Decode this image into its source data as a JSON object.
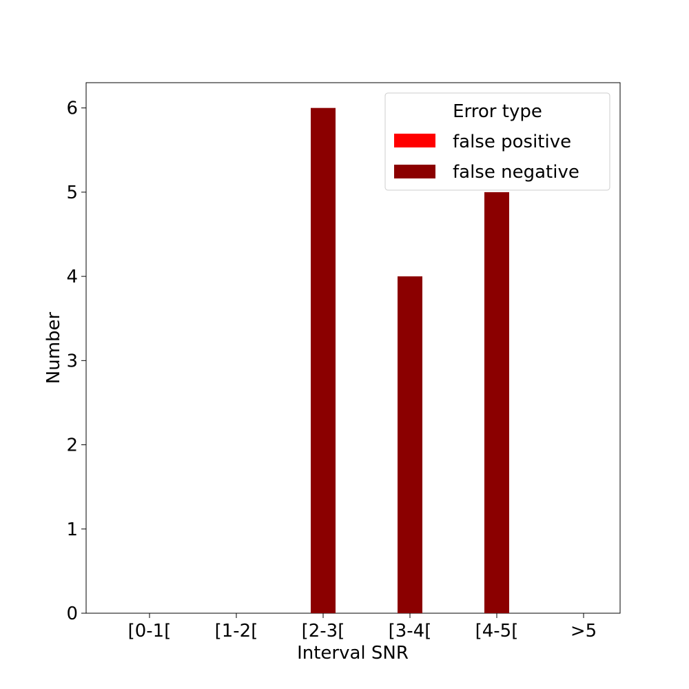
{
  "chart_data": {
    "type": "bar",
    "title": "",
    "xlabel": "Interval SNR",
    "ylabel": "Number",
    "categories": [
      "[0-1[",
      "[1-2[",
      "[2-3[",
      "[3-4[",
      "[4-5[",
      ">5"
    ],
    "series": [
      {
        "name": "false positive",
        "values": [
          0,
          0,
          0,
          0,
          0,
          0
        ],
        "color": "#ff0000"
      },
      {
        "name": "false negative",
        "values": [
          0,
          0,
          6,
          4,
          5,
          0
        ],
        "color": "#8b0000"
      }
    ],
    "ylim": [
      0,
      6.3
    ],
    "yticks": [
      0,
      1,
      2,
      3,
      4,
      5,
      6
    ],
    "grid": false,
    "legend": {
      "title": "Error type",
      "placement": "top-right"
    }
  }
}
